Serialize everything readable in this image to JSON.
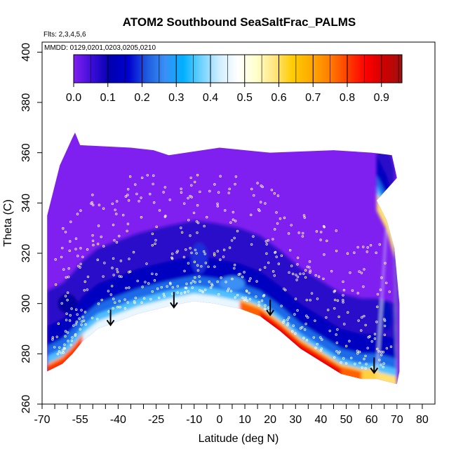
{
  "chart_data": {
    "type": "heatmap",
    "title": "ATOM2 Southbound SeaSaltFrac_PALMS",
    "flights_note": "Flts: 2,3,4,5,6",
    "dates_note": "MMDD: 0129,0201,0203,0205,0210",
    "xlabel": "Latitude (deg N)",
    "ylabel": "Theta (C)",
    "xlim": [
      -70,
      85
    ],
    "ylim": [
      260,
      404
    ],
    "x_ticks": [
      -70,
      -65,
      -60,
      -55,
      -50,
      -45,
      -40,
      -35,
      -30,
      -25,
      -20,
      -15,
      -10,
      -5,
      0,
      5,
      10,
      15,
      20,
      25,
      30,
      35,
      40,
      45,
      50,
      55,
      60,
      65,
      70,
      75,
      80
    ],
    "x_tick_labels": [
      "-70",
      "",
      "",
      "-55",
      "",
      "",
      "-40",
      "",
      "",
      "-25",
      "",
      "",
      "-10",
      "",
      "0",
      "",
      "10",
      "",
      "20",
      "",
      "30",
      "",
      "40",
      "",
      "50",
      "",
      "60",
      "",
      "70",
      "",
      "80"
    ],
    "y_ticks": [
      260,
      280,
      300,
      320,
      340,
      360,
      380,
      400
    ],
    "y_tick_labels": [
      "260",
      "280",
      "300",
      "320",
      "340",
      "360",
      "380",
      "400"
    ],
    "colorbar": {
      "range": [
        0.0,
        0.96
      ],
      "tick_values": [
        0.0,
        0.1,
        0.2,
        0.3,
        0.4,
        0.5,
        0.6,
        0.7,
        0.8,
        0.9
      ],
      "tick_labels": [
        "0.0",
        "0.1",
        "0.2",
        "0.3",
        "0.4",
        "0.5",
        "0.6",
        "0.7",
        "0.8",
        "0.9"
      ],
      "colors": [
        "#8020f0",
        "#3c0dd8",
        "#0000b0",
        "#0000d0",
        "#1e5ae0",
        "#3a8ff5",
        "#00b0ff",
        "#70d2ff",
        "#d0eeff",
        "#ffffff",
        "#ffffcc",
        "#ffe680",
        "#ffcc00",
        "#ffaa00",
        "#ff8000",
        "#ff4000",
        "#ff0000",
        "#d00000",
        "#a01010"
      ]
    },
    "upper_boundary": [
      [
        -68,
        335
      ],
      [
        -63,
        355
      ],
      [
        -58,
        366
      ],
      [
        -57,
        368
      ],
      [
        -55,
        363
      ],
      [
        -35,
        362
      ],
      [
        -26,
        361
      ],
      [
        -20,
        359
      ],
      [
        0,
        362
      ],
      [
        20,
        360
      ],
      [
        45,
        361
      ],
      [
        60,
        360
      ],
      [
        68,
        359
      ],
      [
        70,
        350
      ]
    ],
    "lower_boundary": [
      [
        -68,
        273
      ],
      [
        -62,
        276
      ],
      [
        -58,
        280
      ],
      [
        -54,
        285
      ],
      [
        -48,
        290
      ],
      [
        -40,
        293
      ],
      [
        -32,
        296
      ],
      [
        -20,
        299
      ],
      [
        -10,
        301
      ],
      [
        -2,
        300
      ],
      [
        8,
        298
      ],
      [
        16,
        295
      ],
      [
        24,
        289
      ],
      [
        32,
        282
      ],
      [
        40,
        277
      ],
      [
        48,
        272
      ],
      [
        56,
        270
      ],
      [
        62,
        270
      ],
      [
        70,
        268
      ],
      [
        71,
        273
      ],
      [
        71,
        300
      ],
      [
        69,
        322
      ],
      [
        66,
        333
      ],
      [
        62,
        341
      ]
    ],
    "arrows": [
      [
        -43,
        297
      ],
      [
        -18,
        304
      ],
      [
        20,
        301
      ],
      [
        61,
        278
      ]
    ]
  }
}
